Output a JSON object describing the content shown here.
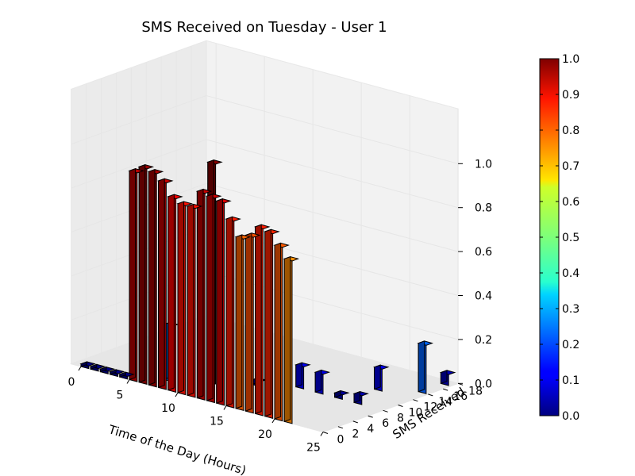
{
  "chart_data": {
    "type": "bar3d",
    "title": "SMS Received on Tuesday - User 1",
    "xlabel": "Time of the Day (Hours)",
    "ylabel": "SMS Received",
    "zlabel": "",
    "xlim": [
      0,
      25
    ],
    "ylim": [
      0,
      18
    ],
    "zlim": [
      0,
      1.0
    ],
    "x_ticks": [
      "0",
      "5",
      "10",
      "15",
      "20",
      "25"
    ],
    "y_ticks": [
      "0",
      "2",
      "4",
      "6",
      "8",
      "10",
      "12",
      "14",
      "16",
      "18"
    ],
    "z_ticks": [
      "0.0",
      "0.2",
      "0.4",
      "0.6",
      "0.8",
      "1.0"
    ],
    "grid": true,
    "colormap": "jet",
    "colorbar": {
      "range": [
        0,
        1.0
      ],
      "ticks": [
        "0.0",
        "0.1",
        "0.2",
        "0.3",
        "0.4",
        "0.5",
        "0.6",
        "0.7",
        "0.8",
        "0.9",
        "1.0"
      ]
    },
    "bars": [
      {
        "x": 0,
        "y": 0,
        "z": 0.0
      },
      {
        "x": 1,
        "y": 0,
        "z": 0.0
      },
      {
        "x": 2,
        "y": 0,
        "z": 0.0
      },
      {
        "x": 3,
        "y": 0,
        "z": 0.0
      },
      {
        "x": 4,
        "y": 0,
        "z": 0.0
      },
      {
        "x": 5,
        "y": 0,
        "z": 0.95
      },
      {
        "x": 6,
        "y": 0,
        "z": 0.98
      },
      {
        "x": 7,
        "y": 0,
        "z": 0.97
      },
      {
        "x": 8,
        "y": 0,
        "z": 0.94
      },
      {
        "x": 9,
        "y": 0,
        "z": 0.88
      },
      {
        "x": 10,
        "y": 0,
        "z": 0.86
      },
      {
        "x": 11,
        "y": 0,
        "z": 0.86
      },
      {
        "x": 12,
        "y": 0,
        "z": 0.94
      },
      {
        "x": 13,
        "y": 0,
        "z": 0.93
      },
      {
        "x": 14,
        "y": 0,
        "z": 0.92
      },
      {
        "x": 15,
        "y": 0,
        "z": 0.85
      },
      {
        "x": 16,
        "y": 0,
        "z": 0.78
      },
      {
        "x": 17,
        "y": 0,
        "z": 0.8
      },
      {
        "x": 18,
        "y": 0,
        "z": 0.85
      },
      {
        "x": 19,
        "y": 0,
        "z": 0.84
      },
      {
        "x": 20,
        "y": 0,
        "z": 0.79
      },
      {
        "x": 21,
        "y": 0,
        "z": 0.74
      },
      {
        "x": 7,
        "y": 2,
        "z": 0.25
      },
      {
        "x": 10,
        "y": 4,
        "z": 1.0
      },
      {
        "x": 13,
        "y": 6,
        "z": 0.02
      },
      {
        "x": 16,
        "y": 8,
        "z": 0.1
      },
      {
        "x": 18,
        "y": 8,
        "z": 0.09
      },
      {
        "x": 21,
        "y": 12,
        "z": 0.1
      },
      {
        "x": 20,
        "y": 8,
        "z": 0.02
      },
      {
        "x": 22,
        "y": 8,
        "z": 0.04
      },
      {
        "x": 24,
        "y": 14,
        "z": 0.22
      },
      {
        "x": 24,
        "y": 17,
        "z": 0.05
      }
    ]
  }
}
